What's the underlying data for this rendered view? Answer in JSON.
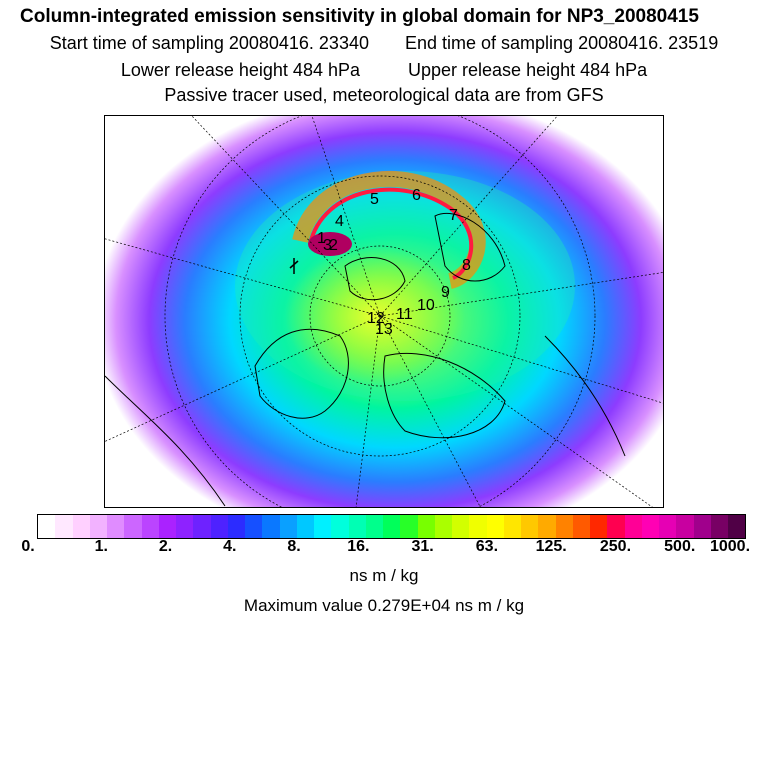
{
  "header": {
    "title": "Column-integrated emission sensitivity in global domain for NP3_20080415",
    "start_label": "Start time of sampling 20080416. 23340",
    "end_label": "End time of sampling 20080416. 23519",
    "lower_label": "Lower release height  484 hPa",
    "upper_label": "Upper release height  484 hPa",
    "tracer_note": "Passive tracer used, meteorological data are from GFS"
  },
  "map": {
    "trajectory_labels": [
      "1",
      "2",
      "3",
      "4",
      "5",
      "6",
      "7",
      "8",
      "9",
      "10",
      "11",
      "12",
      "13"
    ],
    "palette": [
      "#ffffff",
      "#ffe8ff",
      "#ffd0ff",
      "#f2b2ff",
      "#e08cff",
      "#cc66ff",
      "#bb44ff",
      "#aa22ff",
      "#8e22ff",
      "#6e22ff",
      "#4e22ff",
      "#2c2cff",
      "#1650ff",
      "#0a78ff",
      "#0aa0ff",
      "#00c8ff",
      "#00f0ff",
      "#00ffdc",
      "#00ffb4",
      "#00ff8c",
      "#00ff5a",
      "#28ff28",
      "#78ff00",
      "#aaff00",
      "#d2ff00",
      "#f0ff00",
      "#ffff00",
      "#ffe600",
      "#ffc800",
      "#ffaa00",
      "#ff8200",
      "#ff5a00",
      "#ff2800",
      "#ff0050",
      "#ff0096",
      "#ff00b4",
      "#e600b4",
      "#c800a0",
      "#a0008c",
      "#780064",
      "#500046"
    ]
  },
  "colorbar": {
    "tick_labels": [
      "0.",
      "1.",
      "2.",
      "4.",
      "8.",
      "16.",
      "31.",
      "63.",
      "125.",
      "250.",
      "500.",
      "1000."
    ],
    "units": "ns m / kg"
  },
  "max_value_text": "Maximum value  0.279E+04 ns m / kg"
}
